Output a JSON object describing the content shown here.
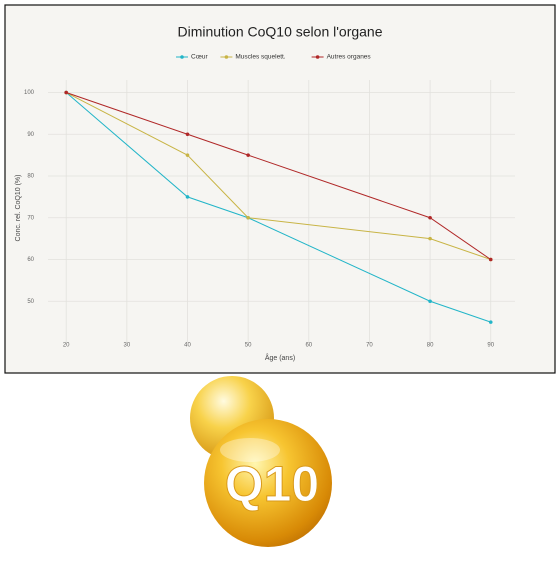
{
  "chart_data": {
    "type": "line",
    "title": "Diminution CoQ10 selon l'organe",
    "x_label": "Âge (ans)",
    "y_label": "Conc. rel. CoQ10 (%)",
    "x": [
      20,
      40,
      50,
      80,
      90
    ],
    "series": [
      {
        "name": "Cœur",
        "color": "#22b5c8",
        "values": [
          100,
          75,
          70,
          50,
          45
        ]
      },
      {
        "name": "Muscles squelett.",
        "color": "#c8b445",
        "values": [
          100,
          85,
          70,
          65,
          60
        ]
      },
      {
        "name": "Autres organes",
        "color": "#b02828",
        "values": [
          100,
          90,
          85,
          70,
          60
        ]
      }
    ],
    "xlim": [
      17,
      94
    ],
    "ylim": [
      40,
      103
    ],
    "xticks": [
      20,
      30,
      40,
      50,
      60,
      70,
      80,
      90
    ],
    "yticks": [
      50,
      60,
      70,
      80,
      90,
      100
    ],
    "grid": true,
    "legend": "top"
  },
  "illustration": {
    "label": "Q10"
  }
}
